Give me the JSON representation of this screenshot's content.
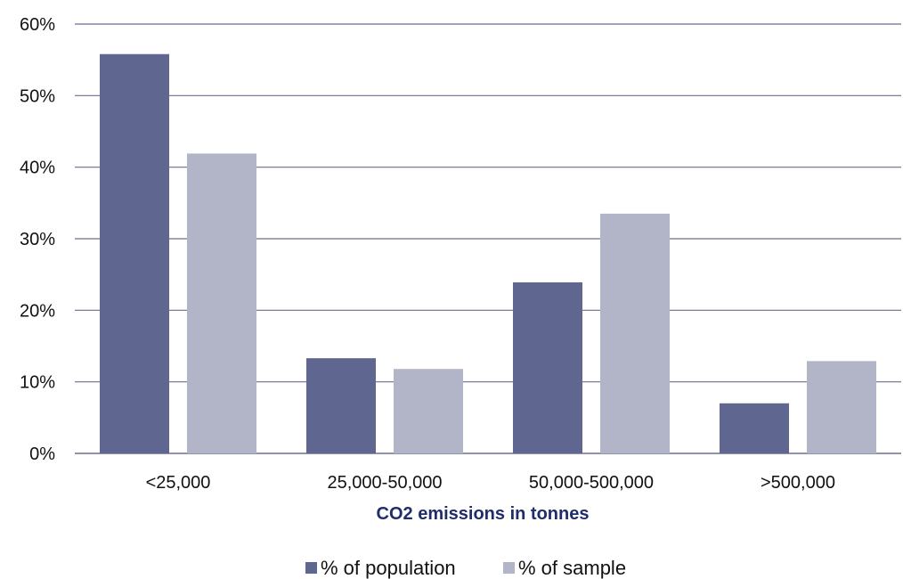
{
  "chart_data": {
    "type": "bar",
    "categories": [
      "<25,000",
      "25,000-50,000",
      "50,000-500,000",
      ">500,000"
    ],
    "series": [
      {
        "name": "% of population",
        "values": [
          55.8,
          13.3,
          23.9,
          7.0
        ],
        "color": "#5f6790"
      },
      {
        "name": "% of sample",
        "values": [
          41.9,
          11.8,
          33.5,
          12.9
        ],
        "color": "#b2b4c7"
      }
    ],
    "title": "",
    "xlabel": "CO2 emissions in tonnes",
    "ylabel": "",
    "ylim": [
      0,
      60
    ],
    "yticks": [
      "0%",
      "10%",
      "20%",
      "30%",
      "40%",
      "50%",
      "60%"
    ],
    "grid": true,
    "legend": "bottom",
    "colors": {
      "gridline": "#6b6f8f",
      "axis_title": "#1f2d6b"
    }
  }
}
